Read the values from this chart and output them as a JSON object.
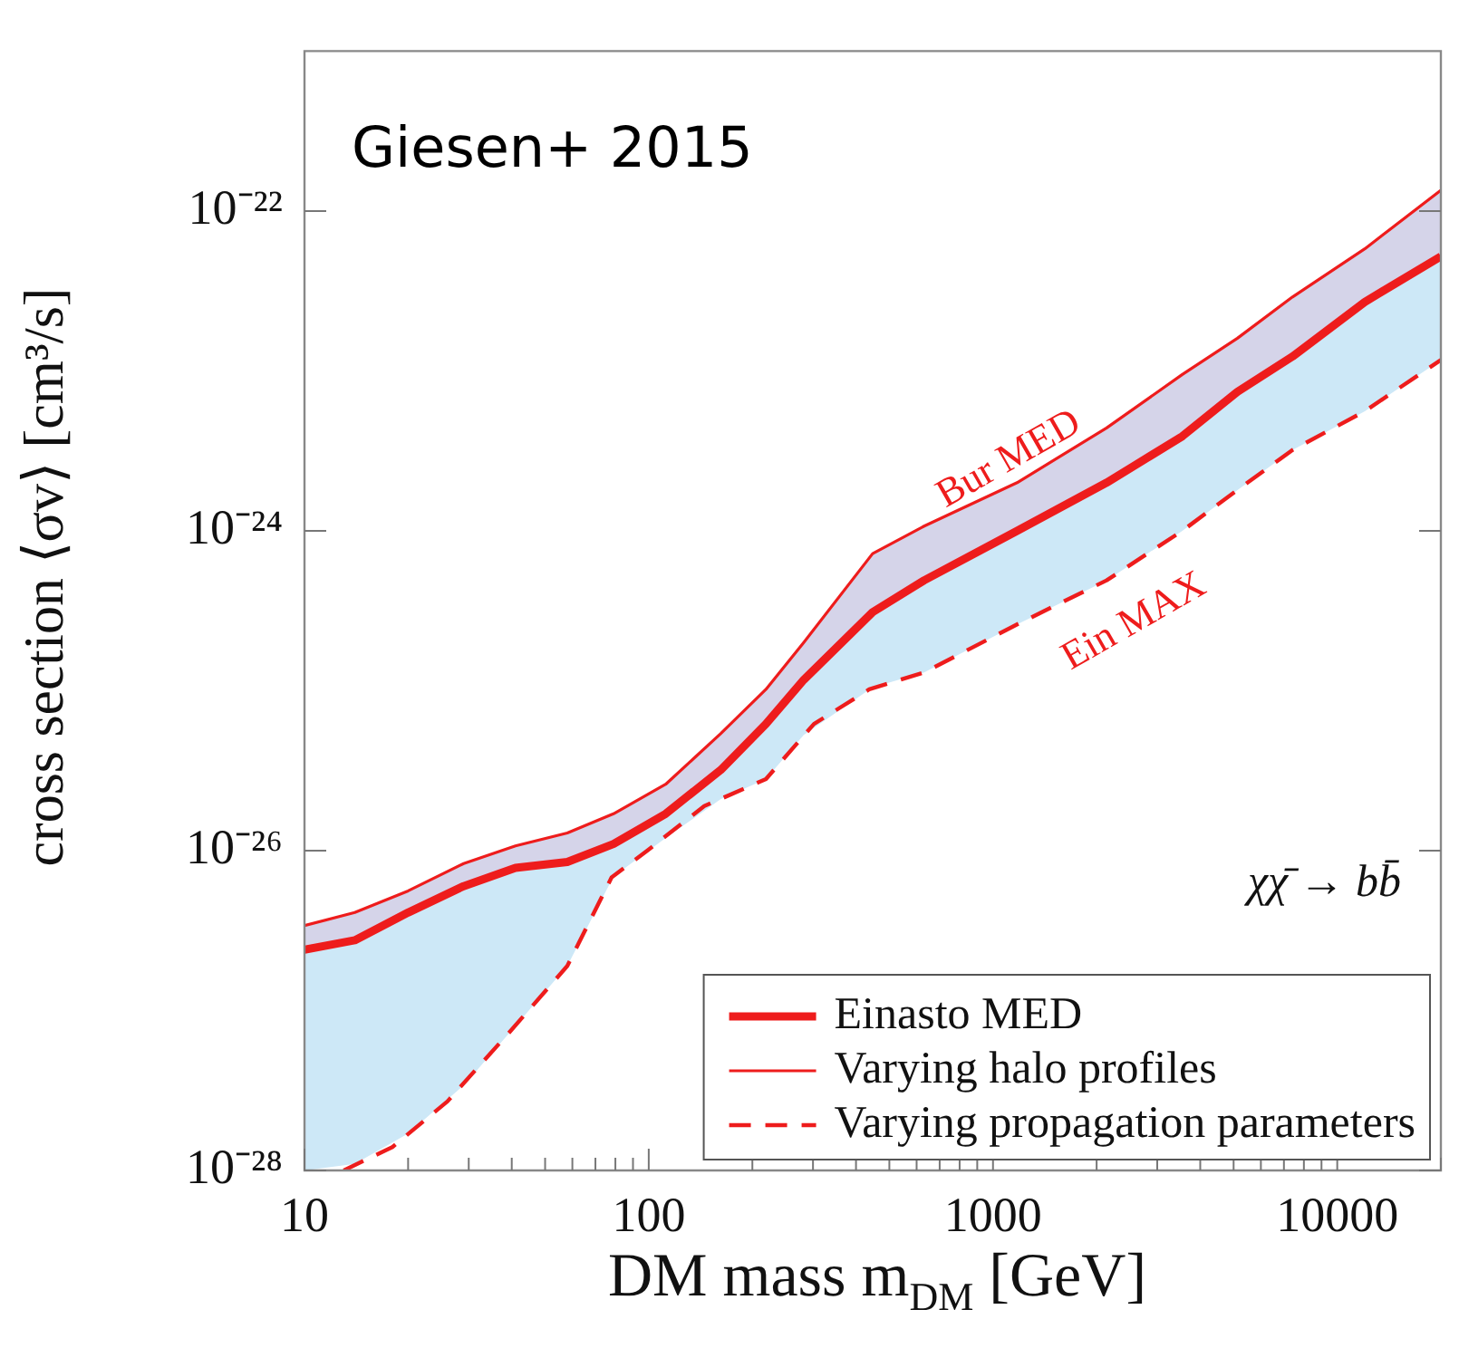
{
  "chart_data": {
    "type": "line",
    "xlabel": "DM mass m$_{DM}$ [GeV]",
    "ylabel": "cross section ⟨σv⟩ [cm³/s]",
    "log": "xy",
    "xlim": [
      10,
      20000
    ],
    "ylim": [
      1e-28,
      1e-21
    ],
    "xticks": [
      10,
      {
        "value": 20,
        "label": null
      },
      {
        "value": 30,
        "label": null
      },
      {
        "value": 40,
        "label": null
      },
      {
        "value": 50,
        "label": null
      },
      {
        "value": 60,
        "label": null
      },
      {
        "value": 70,
        "label": null
      },
      {
        "value": 80,
        "label": null
      },
      {
        "value": 90,
        "label": null
      },
      100,
      {
        "value": 200,
        "label": null
      },
      {
        "value": 300,
        "label": null
      },
      {
        "value": 400,
        "label": null
      },
      {
        "value": 500,
        "label": null
      },
      {
        "value": 600,
        "label": null
      },
      {
        "value": 700,
        "label": null
      },
      {
        "value": 800,
        "label": null
      },
      {
        "value": 900,
        "label": null
      },
      1000,
      {
        "value": 2000,
        "label": null
      },
      {
        "value": 3000,
        "label": null
      },
      {
        "value": 4000,
        "label": null
      },
      {
        "value": 5000,
        "label": null
      },
      {
        "value": 6000,
        "label": null
      },
      {
        "value": 7000,
        "label": null
      },
      {
        "value": 8000,
        "label": null
      },
      {
        "value": 9000,
        "label": null
      },
      10000,
      {
        "value": 20000,
        "label": null
      }
    ],
    "yticks": [
      {
        "value": 1e-28,
        "label": "10⁻²⁸"
      },
      {
        "value": 1e-26,
        "label": "10⁻²⁶"
      },
      {
        "value": 1e-24,
        "label": "10⁻²⁴"
      },
      {
        "value": 1e-22,
        "label": "10⁻²²"
      }
    ],
    "grid": false,
    "legend": "bottom right",
    "series": [
      {
        "name": "Einasto MED",
        "color": "#ee1c1c",
        "line_style": "solid",
        "x": [
          10,
          14,
          20,
          29,
          41,
          58,
          79,
          112,
          162,
          219,
          282,
          447,
          631,
          1175,
          2138,
          3548,
          5129,
          7413,
          12023,
          20000
        ],
        "values": [
          2.4e-27,
          2.75e-27,
          4.1e-27,
          6e-27,
          7.8e-27,
          8.5e-27,
          1.1e-26,
          1.7e-26,
          3.2e-26,
          6.2e-26,
          1.17e-25,
          3.1e-25,
          4.9e-25,
          1e-24,
          2e-24,
          3.9e-24,
          7.4e-24,
          1.23e-23,
          2.7e-23,
          5.2e-23
        ],
        "lower": [
          1e-28,
          1.1e-28,
          1.7e-28,
          3.4e-28,
          8e-28,
          1.9e-27,
          6.9e-27,
          1.2e-26,
          2.1e-26,
          2.8e-26,
          5.3e-26,
          1.05e-25,
          1.3e-25,
          2.6e-25,
          4.9e-25,
          1e-24,
          1.8e-24,
          3.2e-24,
          5.6e-24,
          1.17e-23
        ],
        "upper": [
          2.4e-27,
          2.75e-27,
          4.1e-27,
          6e-27,
          7.8e-27,
          8.5e-27,
          1.1e-26,
          1.7e-26,
          3.2e-26,
          6.2e-26,
          1.17e-25,
          3.1e-25,
          4.9e-25,
          1e-24,
          2e-24,
          3.9e-24,
          7.4e-24,
          1.23e-23,
          2.7e-23,
          5.2e-23
        ]
      },
      {
        "name": "Varying halo profiles",
        "color": "#ee1c1c",
        "line_style": "solid",
        "x": [
          10,
          14,
          20,
          29,
          41,
          58,
          79,
          112,
          162,
          219,
          282,
          447,
          631,
          1175,
          2138,
          3548,
          5129,
          7413,
          12023,
          20000
        ],
        "values": [
          3.4e-27,
          4.1e-27,
          5.6e-27,
          8.3e-27,
          1.07e-26,
          1.29e-26,
          1.7e-26,
          2.6e-26,
          5.4e-26,
          1.02e-25,
          2e-25,
          7.2e-25,
          1.07e-24,
          2e-24,
          4.4e-24,
          9.5e-24,
          1.6e-23,
          2.9e-23,
          5.8e-23,
          1.35e-22
        ],
        "lower": [
          2.4e-27,
          2.75e-27,
          4.1e-27,
          6e-27,
          7.8e-27,
          8.5e-27,
          1.1e-26,
          1.7e-26,
          3.2e-26,
          6.2e-26,
          1.17e-25,
          3.1e-25,
          4.9e-25,
          1e-24,
          2e-24,
          3.9e-24,
          7.4e-24,
          1.23e-23,
          2.7e-23,
          5.2e-23
        ],
        "upper": [
          3.4e-27,
          4.1e-27,
          5.6e-27,
          8.3e-27,
          1.07e-26,
          1.29e-26,
          1.7e-26,
          2.6e-26,
          5.4e-26,
          1.02e-25,
          2e-25,
          7.2e-25,
          1.07e-24,
          2e-24,
          4.4e-24,
          9.5e-24,
          1.6e-23,
          2.9e-23,
          5.8e-23,
          1.35e-22
        ]
      },
      {
        "name": "Varying propagation parameters",
        "color": "#ee1c1c",
        "line_style": "dashed",
        "x": [
          13,
          18,
          26,
          40,
          58,
          78,
          99,
          145,
          219,
          302,
          437,
          631,
          1175,
          2138,
          3548,
          5129,
          7413,
          12023,
          20000
        ],
        "values": [
          1e-28,
          1.4e-28,
          2.7e-28,
          7.6e-28,
          1.9e-27,
          6.8e-27,
          1e-26,
          1.9e-26,
          2.8e-26,
          6.2e-26,
          1.02e-25,
          1.3e-25,
          2.6e-25,
          4.9e-25,
          1e-24,
          1.8e-24,
          3.2e-24,
          5.6e-24,
          1.17e-23
        ]
      }
    ],
    "annotations": [
      "Giesen+ 2015",
      "χχ̄ → bb̄",
      "Bur MED",
      "Ein MAX"
    ]
  }
}
